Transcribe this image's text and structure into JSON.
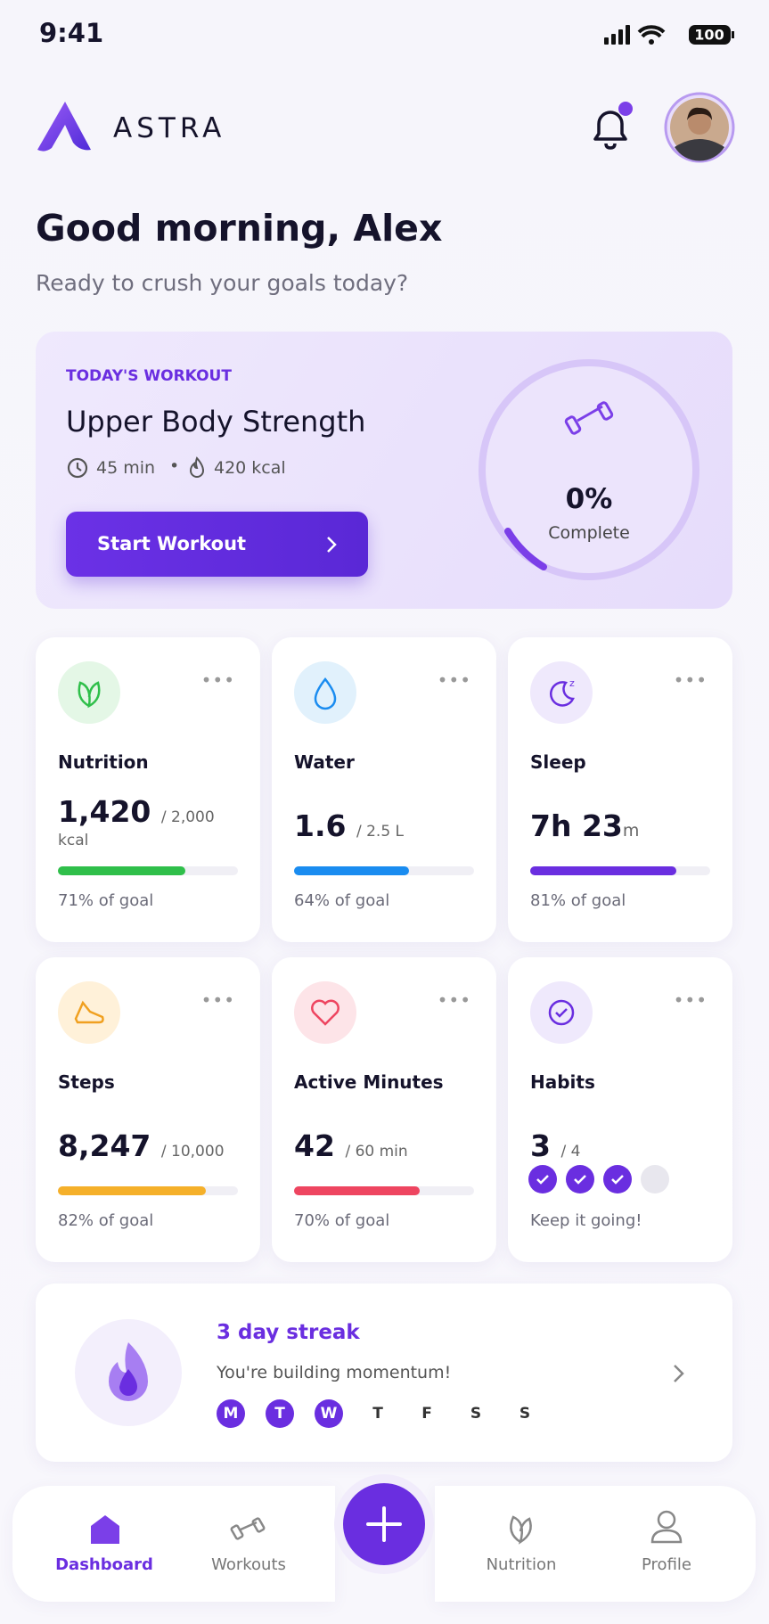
{
  "status_bar": {
    "time": "9:41",
    "battery": "100"
  },
  "header": {
    "brand": "ASTRA"
  },
  "greeting": {
    "title": "Good morning, Alex",
    "subtitle": "Ready to crush your goals today?"
  },
  "workout": {
    "eyebrow": "TODAY'S WORKOUT",
    "title": "Upper Body Strength",
    "duration": "45 min",
    "calories": "420 kcal",
    "button": "Start Workout",
    "progress": "0%",
    "progress_caption": "Complete"
  },
  "tiles": [
    {
      "title": "Nutrition",
      "value": "1,420",
      "target": "/ 2,000",
      "unit": "kcal",
      "progress": 71,
      "progress_label": "71% of goal",
      "color": "#2fbf4a"
    },
    {
      "title": "Water",
      "value": "1.6",
      "target": "/ 2.5 L",
      "progress": 64,
      "progress_label": "64% of goal",
      "color": "#1a8cf0"
    },
    {
      "title": "Sleep",
      "value": "7h 23",
      "suffix": "m",
      "progress": 81,
      "progress_label": "81% of goal",
      "color": "#6a2ee0"
    },
    {
      "title": "Steps",
      "value": "8,247",
      "target": "/ 10,000",
      "progress": 82,
      "progress_label": "82% of goal",
      "color": "#f5b02a"
    },
    {
      "title": "Active Minutes",
      "value": "42",
      "target": "/ 60 min",
      "progress": 70,
      "progress_label": "70% of goal",
      "color": "#ee4560"
    },
    {
      "title": "Habits",
      "value": "3",
      "target": "/ 4",
      "checks": [
        true,
        true,
        true,
        false
      ],
      "caption": "Keep it going!"
    }
  ],
  "streak": {
    "title": "3 day streak",
    "subtitle": "You're building momentum!",
    "days": [
      {
        "label": "M",
        "done": true
      },
      {
        "label": "T",
        "done": true
      },
      {
        "label": "W",
        "done": true
      },
      {
        "label": "T",
        "done": false
      },
      {
        "label": "F",
        "done": false
      },
      {
        "label": "S",
        "done": false
      },
      {
        "label": "S",
        "done": false
      }
    ]
  },
  "nav": {
    "items": [
      "Dashboard",
      "Workouts",
      "Nutrition",
      "Profile"
    ]
  }
}
